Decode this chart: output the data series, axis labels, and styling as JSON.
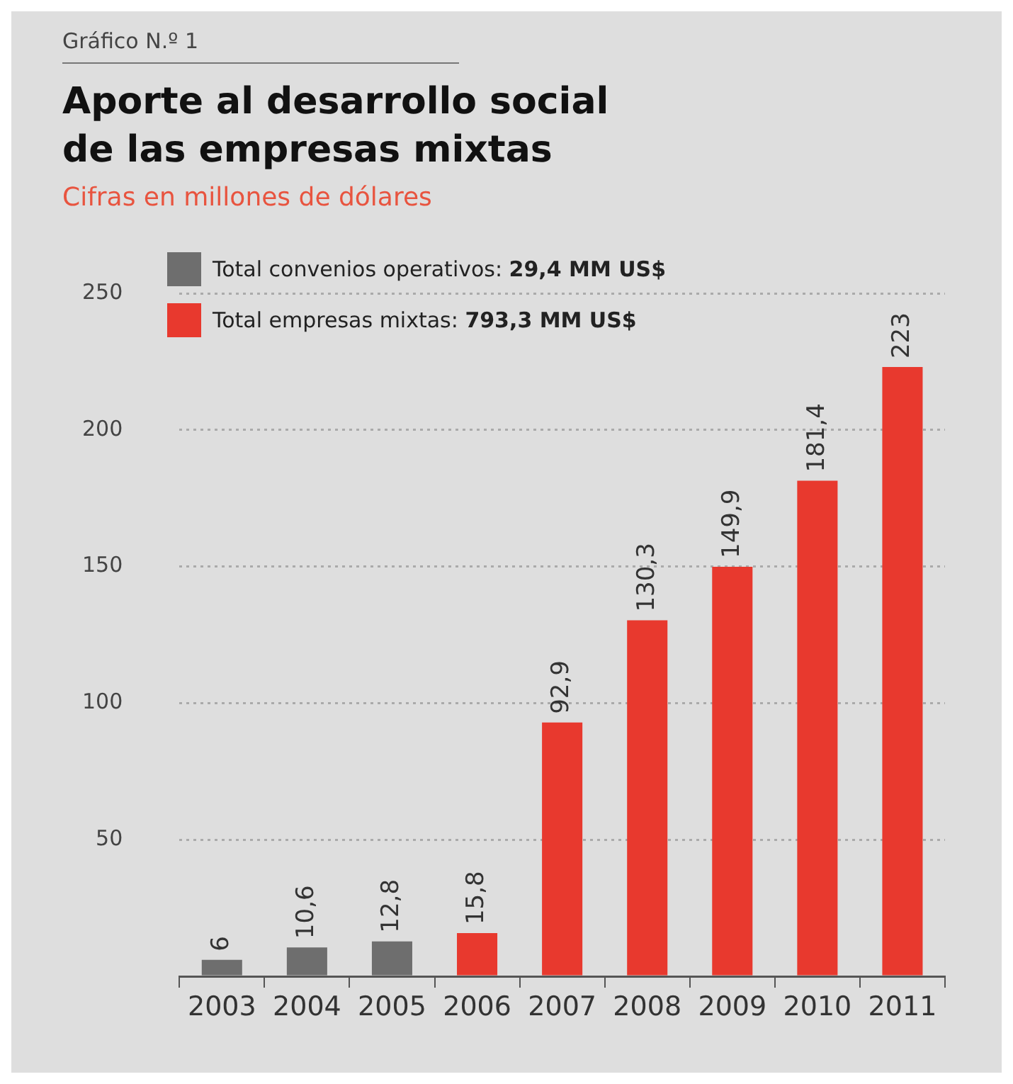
{
  "chart_data": {
    "type": "bar",
    "title": "Aporte al desarrollo social de las empresas mixtas",
    "subtitle": "Cifras en millones de dólares",
    "annotations": [
      "Gráfico N.º 1"
    ],
    "categories": [
      "2003",
      "2004",
      "2005",
      "2006",
      "2007",
      "2008",
      "2009",
      "2010",
      "2011"
    ],
    "series": [
      {
        "name": "Total convenios operativos: 29,4 MM US$",
        "color": "#6e6e6e",
        "values": [
          6,
          10.6,
          12.8,
          null,
          null,
          null,
          null,
          null,
          null
        ],
        "value_labels": [
          "6",
          "10,6",
          "12,8",
          null,
          null,
          null,
          null,
          null,
          null
        ]
      },
      {
        "name": "Total empresas mixtas: 793,3 MM US$",
        "color": "#e8392e",
        "values": [
          null,
          null,
          null,
          15.8,
          92.9,
          130.3,
          149.9,
          181.4,
          223
        ],
        "value_labels": [
          null,
          null,
          null,
          "15,8",
          "92,9",
          "130,3",
          "149,9",
          "181,4",
          "223"
        ]
      }
    ],
    "ylim": [
      0,
      250
    ],
    "yticks": [
      {
        "value": 0,
        "label": null
      },
      50,
      100,
      150,
      200,
      250
    ],
    "grid": "y",
    "legend": "top left"
  }
}
